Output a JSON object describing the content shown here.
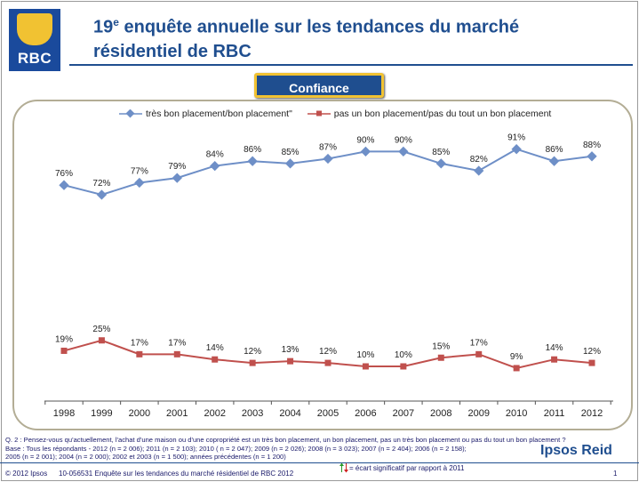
{
  "header": {
    "title_num": "19",
    "title_sup": "e",
    "title_line1": " enquête annuelle sur les tendances du marché",
    "title_line2": "résidentiel de RBC",
    "logo_text": "RBC",
    "badge": "Confiance"
  },
  "chart_data": {
    "type": "line",
    "categories": [
      "1998",
      "1999",
      "2000",
      "2001",
      "2002",
      "2003",
      "2004",
      "2005",
      "2006",
      "2007",
      "2008",
      "2009",
      "2010",
      "2011",
      "2012"
    ],
    "series": [
      {
        "name": "très bon placement/bon placement\"",
        "color": "#6e8fc7",
        "values": [
          76,
          72,
          77,
          79,
          84,
          86,
          85,
          87,
          90,
          90,
          85,
          82,
          91,
          86,
          88
        ],
        "labels": [
          "76%",
          "72%",
          "77%",
          "79%",
          "84%",
          "86%",
          "85%",
          "87%",
          "90%",
          "90%",
          "85%",
          "82%",
          "91%",
          "86%",
          "88%"
        ]
      },
      {
        "name": "pas un bon placement/pas du tout un bon placement",
        "color": "#c0504d",
        "values": [
          19,
          25,
          17,
          17,
          14,
          12,
          13,
          12,
          10,
          10,
          15,
          17,
          9,
          14,
          12
        ],
        "labels": [
          "19%",
          "25%",
          "17%",
          "17%",
          "14%",
          "12%",
          "13%",
          "12%",
          "10%",
          "10%",
          "15%",
          "17%",
          "9%",
          "14%",
          "12%"
        ]
      }
    ],
    "legend": "top",
    "grid": false
  },
  "footnotes": {
    "question": "Q. 2 : Pensez-vous qu'actuellement, l'achat d'une maison ou d'une copropriété est un très bon placement, un bon placement, pas un très bon placement ou pas du tout un bon placement ?",
    "base1": "Base : Tous les répondants - 2012 (n  = 2 006); 2011 (n = 2 103); 2010 ( n = 2 047); 2009 (n = 2 026);  2008 (n = 3 023); 2007 (n = 2 404); 2006 (n = 2 158);",
    "base2": "2005 (n = 2 001); 2004 (n = 2 000); 2002 et 2003 (n = 1 500); années précédentes (n = 1 200)"
  },
  "footer": {
    "copyright": "© 2012 Ipsos",
    "study": "10-056531 Enquête sur  les tendances du marché résidentiel de RBC 2012",
    "significance": "= écart significatif par rapport à 2011",
    "brand": "Ipsos Reid",
    "page": "1"
  }
}
